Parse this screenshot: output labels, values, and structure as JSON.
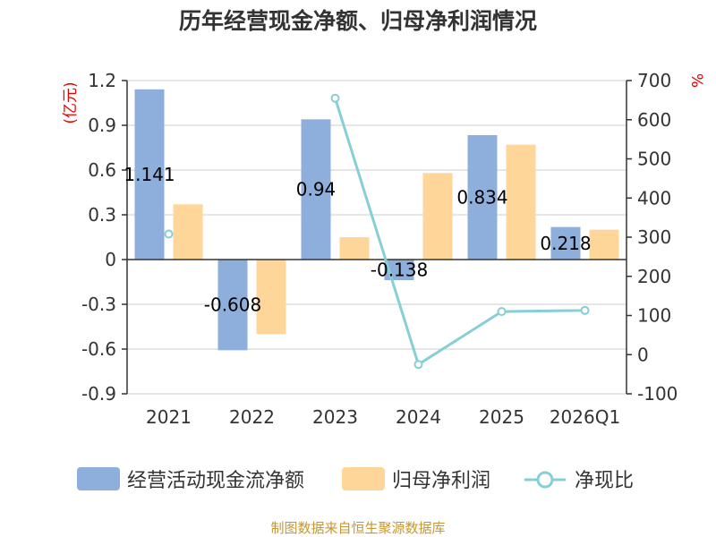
{
  "title": "历年经营现金净额、归母净利润情况",
  "source": "制图数据来自恒生聚源数据库",
  "colors": {
    "cash_flow": "#8eaedb",
    "net_profit": "#ffd699",
    "ratio": "#87cfd6",
    "axis": "#333333",
    "grid": "#cccccc",
    "unit": "#e60000",
    "source": "#c8962e"
  },
  "chart_data": {
    "type": "bar",
    "title": "历年经营现金净额、归母净利润情况",
    "categories": [
      "2021",
      "2022",
      "2023",
      "2024",
      "2025",
      "2026Q1"
    ],
    "left_axis": {
      "unit_label": "(亿元)",
      "range": [
        -0.9,
        1.2
      ],
      "ticks": [
        1.2,
        0.9,
        0.6,
        0.3,
        0,
        -0.3,
        -0.6,
        -0.9
      ],
      "tick_labels": [
        "1.2",
        "0.9",
        "0.6",
        "0.3",
        "0",
        "-0.3",
        "-0.6",
        "-0.9"
      ]
    },
    "right_axis": {
      "unit_label": "%",
      "range": [
        -100,
        700
      ],
      "ticks": [
        700,
        600,
        500,
        400,
        300,
        200,
        100,
        0,
        -100
      ],
      "tick_labels": [
        "700",
        "600",
        "500",
        "400",
        "300",
        "200",
        "100",
        "0",
        "-100"
      ]
    },
    "series": [
      {
        "name": "经营活动现金流净额",
        "type": "bar",
        "axis": "left",
        "values": [
          1.141,
          -0.608,
          0.94,
          -0.138,
          0.834,
          0.218
        ],
        "labels": [
          "1.141",
          "-0.608",
          "0.94",
          "-0.138",
          "0.834",
          "0.218"
        ]
      },
      {
        "name": "归母净利润",
        "type": "bar",
        "axis": "left",
        "values": [
          0.37,
          -0.5,
          0.15,
          0.58,
          0.77,
          0.2
        ]
      },
      {
        "name": "净现比",
        "type": "line",
        "axis": "right",
        "values": [
          308,
          null,
          655,
          -25,
          110,
          113
        ]
      }
    ],
    "legend": [
      "经营活动现金流净额",
      "归母净利润",
      "净现比"
    ],
    "legend_position": "bottom"
  }
}
